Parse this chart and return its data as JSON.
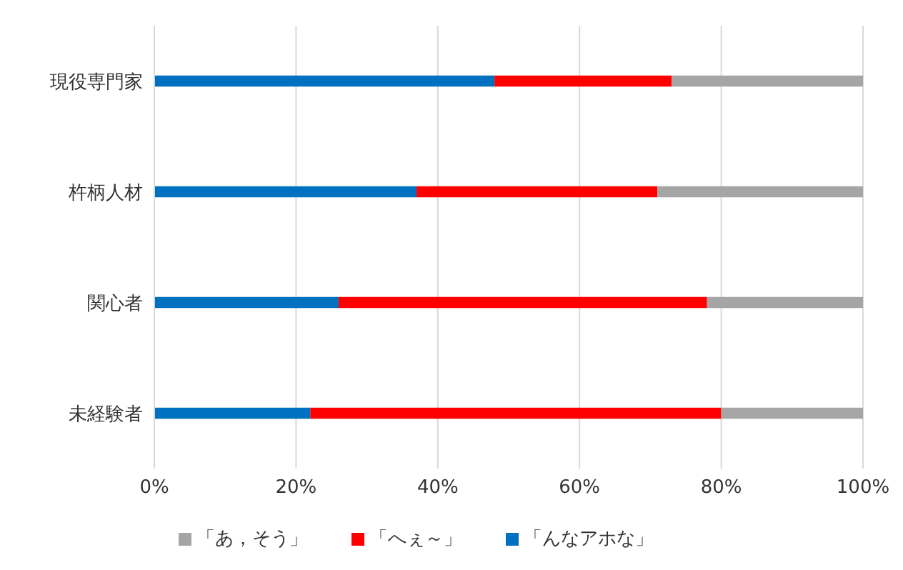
{
  "chart_data": {
    "type": "bar",
    "orientation": "horizontal",
    "stacked": true,
    "categories": [
      "現役専門家",
      "杵柄人材",
      "関心者",
      "未経験者"
    ],
    "series": [
      {
        "name": "「んなアホな」",
        "color": "#0070c0",
        "values": [
          48,
          37,
          26,
          22
        ]
      },
      {
        "name": "「へぇ～」",
        "color": "#ff0000",
        "values": [
          25,
          34,
          52,
          58
        ]
      },
      {
        "name": "「あ，そう」",
        "color": "#a5a5a5",
        "values": [
          27,
          29,
          22,
          20
        ]
      }
    ],
    "xlim": [
      0,
      100
    ],
    "xticks": [
      {
        "value": 0,
        "label": "0%"
      },
      {
        "value": 20,
        "label": "20%"
      },
      {
        "value": 40,
        "label": "40%"
      },
      {
        "value": 60,
        "label": "60%"
      },
      {
        "value": 80,
        "label": "80%"
      },
      {
        "value": 100,
        "label": "100%"
      }
    ],
    "grid": "x",
    "legend": "bottom"
  }
}
